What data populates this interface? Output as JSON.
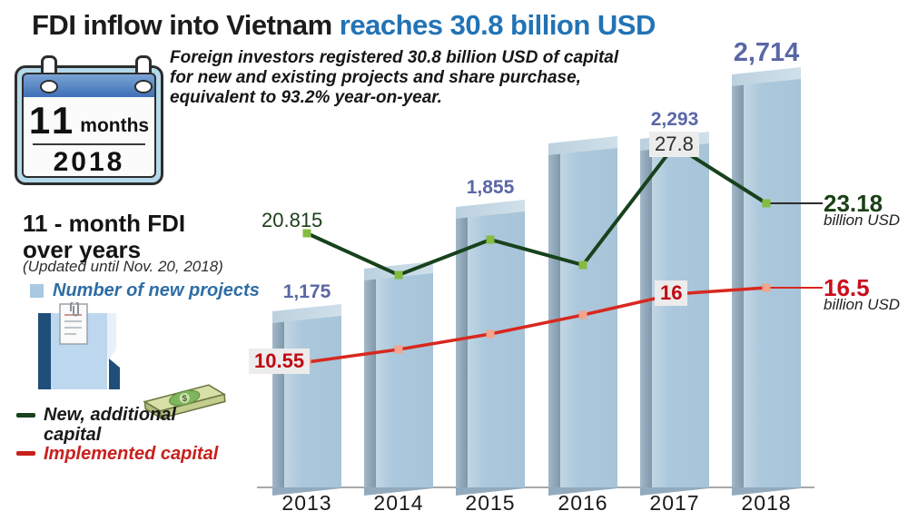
{
  "header": {
    "title_black": "FDI inflow into Vietnam",
    "title_blue": "reaches 30.8 billion USD",
    "title_blue_color": "#2273b5",
    "description_lines": [
      "Foreign investors registered 30.8 billion USD of capital",
      "for new and existing projects and share purchase,",
      "equivalent to 93.2% year-on-year."
    ]
  },
  "calendar": {
    "month_number": "11",
    "month_word": "months",
    "year": "2018"
  },
  "sidebar": {
    "heading_line1": "11 - month FDI",
    "heading_line2": "over years",
    "updated_note": "(Updated until Nov. 20, 2018)",
    "legend_projects": {
      "label": "Number of new projects",
      "swatch_color": "#a9c9e1",
      "text_color": "#2e6da4"
    },
    "legend_new_additional": {
      "label_line1": "New, additional",
      "label_line2": "capital",
      "dash_color": "#17421c",
      "text_color": "#1a1a1a"
    },
    "legend_implemented": {
      "label": "Implemented capital",
      "dash_color": "#c8201d",
      "text_color": "#c8201d"
    },
    "money_symbol": "$"
  },
  "chart_data": {
    "type": "bar+line",
    "categories": [
      "2013",
      "2014",
      "2015",
      "2016",
      "2017",
      "2018"
    ],
    "bars": {
      "name": "Number of new projects",
      "labels": [
        "1,175",
        "",
        "1,855",
        "",
        "2,293",
        "2,714"
      ],
      "values": [
        1175,
        1450,
        1855,
        2265,
        2293,
        2714
      ],
      "color": "#a9c7db"
    },
    "series": [
      {
        "name": "New, additional capital",
        "color": "#17421c",
        "marker_color": "#83bc41",
        "values": [
          20.815,
          17.5,
          20.3,
          18.3,
          27.8,
          23.18
        ],
        "point_labels": [
          "20.815",
          "",
          "",
          "",
          "27.8",
          ""
        ],
        "end_label": "23.18",
        "end_unit": "billion USD",
        "end_color": "#1b3f17",
        "leader_color": "#2b2b2b"
      },
      {
        "name": "Implemented capital",
        "color": "#d8281f",
        "marker_color": "#f2a48c",
        "values": [
          10.55,
          11.6,
          12.85,
          14.3,
          16,
          16.5
        ],
        "point_labels": [
          "10.55",
          "",
          "",
          "",
          "16",
          ""
        ],
        "end_label": "16.5",
        "end_unit": "billion USD",
        "end_color": "#c8101c",
        "leader_color": "#d8281f"
      }
    ],
    "unit": "billion USD",
    "legend_position": "left",
    "grid": false
  }
}
